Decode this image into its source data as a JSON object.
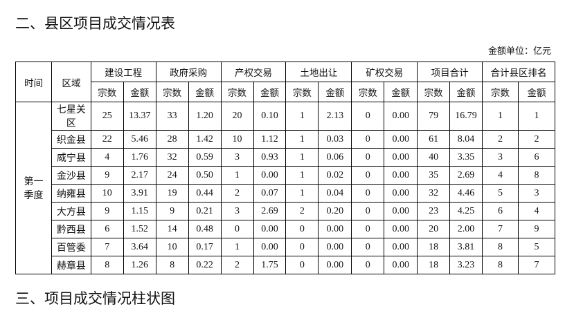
{
  "section_title": "二、县区项目成交情况表",
  "unit_note": "金额单位：亿元",
  "table": {
    "col_time": "时间",
    "col_area": "区域",
    "groups": [
      "建设工程",
      "政府采购",
      "产权交易",
      "土地出让",
      "矿权交易",
      "项目合计",
      "合计县区排名"
    ],
    "sub": [
      "宗数",
      "金额"
    ],
    "period": "第一季度",
    "rows": [
      [
        "七星关区",
        "25",
        "13.37",
        "33",
        "1.20",
        "20",
        "0.10",
        "1",
        "2.13",
        "0",
        "0.00",
        "79",
        "16.79",
        "1",
        "1"
      ],
      [
        "织金县",
        "22",
        "5.46",
        "28",
        "1.42",
        "10",
        "1.12",
        "1",
        "0.03",
        "0",
        "0.00",
        "61",
        "8.04",
        "2",
        "2"
      ],
      [
        "威宁县",
        "4",
        "1.76",
        "32",
        "0.59",
        "3",
        "0.93",
        "1",
        "0.06",
        "0",
        "0.00",
        "40",
        "3.35",
        "3",
        "6"
      ],
      [
        "金沙县",
        "9",
        "2.17",
        "24",
        "0.50",
        "1",
        "0.00",
        "1",
        "0.02",
        "0",
        "0.00",
        "35",
        "2.69",
        "4",
        "8"
      ],
      [
        "纳雍县",
        "10",
        "3.91",
        "19",
        "0.44",
        "2",
        "0.07",
        "1",
        "0.04",
        "0",
        "0.00",
        "32",
        "4.46",
        "5",
        "3"
      ],
      [
        "大方县",
        "9",
        "1.15",
        "9",
        "0.21",
        "3",
        "2.69",
        "2",
        "0.20",
        "0",
        "0.00",
        "23",
        "4.25",
        "6",
        "4"
      ],
      [
        "黔西县",
        "6",
        "1.52",
        "14",
        "0.48",
        "0",
        "0.00",
        "0",
        "0.00",
        "0",
        "0.00",
        "20",
        "2.00",
        "7",
        "9"
      ],
      [
        "百管委",
        "7",
        "3.64",
        "10",
        "0.17",
        "1",
        "0.00",
        "0",
        "0.00",
        "0",
        "0.00",
        "18",
        "3.81",
        "8",
        "5"
      ],
      [
        "赫章县",
        "8",
        "1.26",
        "8",
        "0.22",
        "2",
        "1.75",
        "0",
        "0.00",
        "0",
        "0.00",
        "18",
        "3.23",
        "8",
        "7"
      ]
    ]
  },
  "next_section_title": "三、项目成交情况柱状图"
}
